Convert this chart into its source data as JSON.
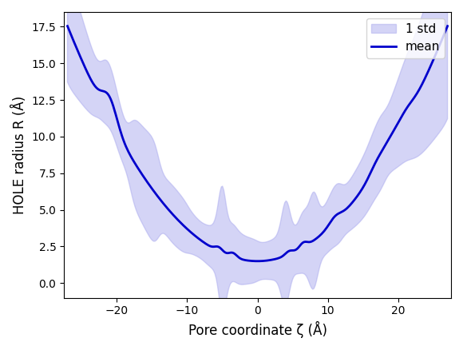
{
  "title": "",
  "xlabel": "Pore coordinate ζ (Å)",
  "ylabel": "HOLE radius R (Å)",
  "xlim": [
    -27.5,
    27.5
  ],
  "ylim": [
    -1.0,
    18.5
  ],
  "xticks": [
    -20,
    -10,
    0,
    10,
    20
  ],
  "yticks": [
    0.0,
    2.5,
    5.0,
    7.5,
    10.0,
    12.5,
    15.0,
    17.5
  ],
  "mean_color": "#0000cc",
  "fill_color": "#aaaaee",
  "fill_alpha": 0.5,
  "legend_labels": [
    "1 std",
    "mean"
  ],
  "figsize": [
    5.8,
    4.38
  ],
  "dpi": 100
}
